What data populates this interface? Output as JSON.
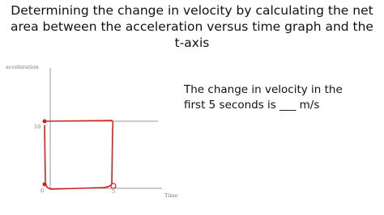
{
  "title": "Determining the change in velocity by calculating the net area between the acceleration versus time graph and the t-axis",
  "graph": {
    "y_axis_label": "acceleration",
    "x_axis_label": "Time",
    "y_ticks": [
      "10",
      "0"
    ],
    "x_ticks": [
      "5"
    ]
  },
  "body_text": "The change in velocity in the first 5 seconds is ___ m/s"
}
